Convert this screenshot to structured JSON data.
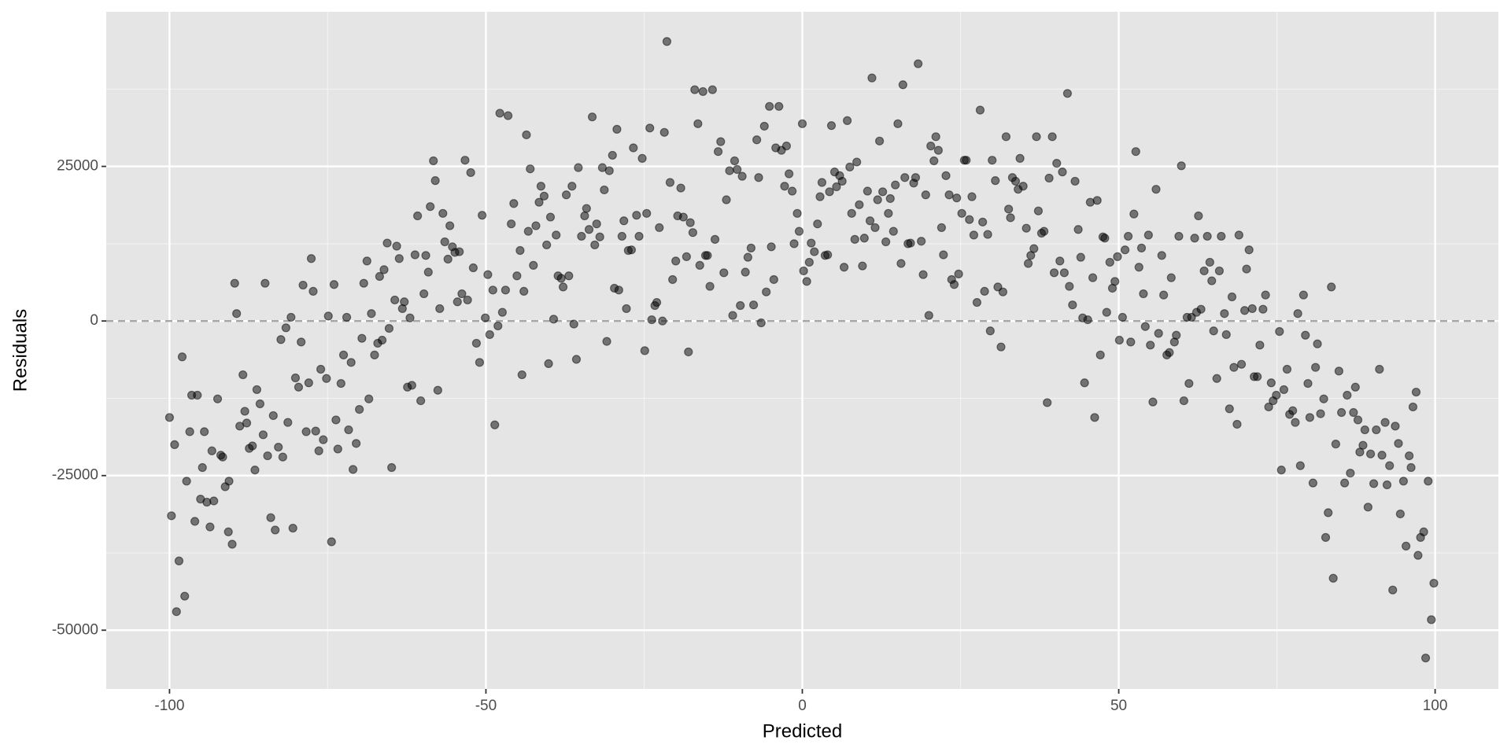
{
  "chart_data": {
    "type": "scatter",
    "x_label": "Predicted",
    "y_label": "Residuals",
    "xlim": [
      -110,
      110
    ],
    "ylim": [
      -59500,
      50000
    ],
    "xticks": [
      -100,
      -50,
      0,
      50,
      100
    ],
    "yticks": [
      -50000,
      -25000,
      0,
      25000
    ],
    "x_minor_grid": [
      -75,
      -25,
      25,
      75
    ],
    "y_minor_grid": [
      -37500,
      -12500,
      12500,
      37500
    ],
    "grid": true,
    "hline": 0,
    "color": "#000000",
    "alpha": 0.5,
    "x": [
      -100,
      -99.2,
      -99.7,
      -98.9,
      -98.5,
      -98,
      -97.6,
      -97.3,
      -96.8,
      -96.5,
      -96,
      -95.6,
      -95.1,
      -94.8,
      -94.5,
      -94.1,
      -93.6,
      -93.3,
      -93,
      -92.4,
      -91.9,
      -91.6,
      -91.2,
      -90.7,
      -90.6,
      -90.1,
      -89.7,
      -89.4,
      -88.9,
      -88.4,
      -88.1,
      -87.8,
      -87.4,
      -86.9,
      -86.5,
      -86.2,
      -85.7,
      -85.2,
      -84.9,
      -84.5,
      -84,
      -83.6,
      -83.3,
      -82.8,
      -82.4,
      -82.1,
      -81.6,
      -81.3,
      -80.8,
      -80.5,
      -80.1,
      -79.6,
      -79.2,
      -78.9,
      -78.4,
      -78,
      -77.6,
      -77.3,
      -76.9,
      -76.4,
      -76.1,
      -75.7,
      -75.2,
      -74.9,
      -74.4,
      -74,
      -73.7,
      -73.4,
      -72.9,
      -72.5,
      -72,
      -71.7,
      -71.3,
      -71,
      -70.5,
      -70,
      -69.6,
      -69.3,
      -68.8,
      -68.5,
      -68.1,
      -67.6,
      -67.1,
      -66.8,
      -66.4,
      -66.1,
      -65.6,
      -65.3,
      -64.9,
      -64.4,
      -64.1,
      -63.7,
      -63.2,
      -62.9,
      -62.4,
      -62,
      -61.7,
      -61.2,
      -60.8,
      -60.3,
      -59.8,
      -59.5,
      -59.1,
      -58.8,
      -58.3,
      -58,
      -57.6,
      -57.3,
      -56.8,
      -56.5,
      -56,
      -55.7,
      -55.3,
      -54.9,
      -54.5,
      -54.2,
      -53.8,
      -53.3,
      -52.9,
      -52.4,
      -52,
      -51.5,
      -51,
      -50.6,
      -50.1,
      -49.7,
      -49.4,
      -48.9,
      -48.6,
      -48.1,
      -47.8,
      -47.4,
      -46.9,
      -46.5,
      -46,
      -45.6,
      -45.1,
      -44.6,
      -44.3,
      -44,
      -43.6,
      -43.3,
      -43,
      -42.5,
      -42.1,
      -41.6,
      -41.3,
      -40.8,
      -40.4,
      -40.1,
      -39.8,
      -39.3,
      -38.9,
      -38.6,
      -38.1,
      -37.8,
      -37.3,
      -36.9,
      -36.4,
      -36.1,
      -35.7,
      -35.4,
      -34.9,
      -34.4,
      -34.1,
      -33.7,
      -33.2,
      -32.8,
      -32.5,
      -32,
      -31.6,
      -31.3,
      -30.9,
      -30.5,
      -30,
      -29.7,
      -29.3,
      -29,
      -28.5,
      -28.2,
      -27.8,
      -27.5,
      -27,
      -26.7,
      -26.2,
      -25.8,
      -25.3,
      -24.9,
      -24.6,
      -24.1,
      -23.8,
      -23.3,
      -23,
      -22.6,
      -22.1,
      -21.8,
      -21.4,
      -20.9,
      -20.5,
      -20,
      -19.7,
      -19.2,
      -18.8,
      -18.3,
      -18,
      -17.7,
      -17.3,
      -17,
      -16.5,
      -16.2,
      -15.7,
      -15.3,
      -15,
      -14.6,
      -14.2,
      -13.8,
      -13.3,
      -12.9,
      -12.4,
      -12,
      -11.5,
      -11,
      -10.7,
      -10.3,
      -9.8,
      -9.5,
      -9,
      -8.6,
      -8.1,
      -7.7,
      -7.2,
      -6.9,
      -6.5,
      -6,
      -5.7,
      -5.2,
      -4.9,
      -4.5,
      -4.2,
      -3.7,
      -3.3,
      -2.8,
      -2.5,
      -2.1,
      -1.6,
      -1.3,
      -0.8,
      -0.5,
      0,
      0.2,
      0.7,
      1.1,
      1.4,
      1.9,
      2.4,
      2.8,
      3.1,
      3.6,
      4,
      4.3,
      4.6,
      5.1,
      5.4,
      5.9,
      6.3,
      6.6,
      7.1,
      7.5,
      7.8,
      8.3,
      8.6,
      9,
      9.5,
      9.8,
      10.3,
      10.7,
      11,
      11.5,
      11.9,
      12.2,
      12.7,
      13.2,
      13.6,
      13.9,
      14.4,
      14.7,
      15.1,
      15.6,
      15.9,
      16.2,
      16.7,
      17.1,
      17.6,
      17.9,
      18.3,
      18.8,
      19.1,
      19.5,
      20,
      20.3,
      20.8,
      21.1,
      21.5,
      22,
      22.3,
      22.7,
      23.2,
      23.6,
      24,
      24.4,
      24.7,
      25.2,
      25.6,
      25.9,
      26.4,
      26.8,
      27.1,
      27.6,
      28.1,
      28.5,
      28.8,
      29.3,
      29.7,
      30,
      30.5,
      30.9,
      31.4,
      31.7,
      32.2,
      32.6,
      32.9,
      33.2,
      33.7,
      34.1,
      34.4,
      34.9,
      35.4,
      35.7,
      36.1,
      36.6,
      37,
      37.3,
      37.8,
      38.2,
      38.7,
      39,
      39.5,
      39.8,
      40.2,
      40.7,
      41.1,
      41.4,
      41.9,
      42.2,
      42.7,
      43.1,
      43.6,
      44,
      44.3,
      44.6,
      45.1,
      45.5,
      45.9,
      46.2,
      46.6,
      47.1,
      47.5,
      47.8,
      48.1,
      48.6,
      49,
      49.4,
      49.8,
      50.1,
      50.6,
      51,
      51.5,
      51.9,
      52.4,
      52.7,
      53.2,
      53.6,
      53.9,
      54.2,
      54.7,
      55,
      55.4,
      55.9,
      56.3,
      56.8,
      57.1,
      57.6,
      58,
      58.3,
      58.8,
      59.1,
      59.5,
      59.9,
      60.3,
      60.8,
      61.1,
      61.5,
      62,
      62.3,
      62.6,
      63,
      63.5,
      64,
      64.4,
      64.7,
      65,
      65.5,
      65.9,
      66.2,
      66.7,
      67,
      67.5,
      67.9,
      68.2,
      68.7,
      69,
      69.4,
      69.9,
      70.2,
      70.6,
      71.1,
      71.4,
      71.9,
      72.3,
      72.8,
      73.2,
      73.7,
      74.1,
      74.4,
      74.9,
      75.4,
      75.7,
      76.1,
      76.6,
      77,
      77.5,
      77.9,
      78.3,
      78.7,
      79.2,
      79.5,
      79.9,
      80.2,
      80.7,
      81.1,
      81.4,
      81.9,
      82.4,
      82.7,
      83.1,
      83.6,
      83.9,
      84.3,
      84.8,
      85.2,
      85.7,
      86.1,
      86.6,
      87.1,
      87.4,
      87.8,
      88.1,
      88.6,
      88.9,
      89.4,
      89.8,
      90.3,
      90.7,
      91.2,
      91.6,
      92.1,
      92.4,
      92.8,
      93.3,
      93.7,
      94.2,
      94.5,
      95,
      95.4,
      95.9,
      96.2,
      96.5,
      97,
      97.3,
      97.7,
      98.2,
      98.5,
      98.9,
      99.4,
      99.8
    ],
    "values": [
      -15600,
      -20000,
      -31500,
      -47000,
      -38800,
      -5800,
      -44500,
      -25900,
      -17900,
      -12000,
      -32400,
      -12000,
      -28800,
      -23700,
      -17900,
      -29300,
      -33300,
      -21000,
      -29100,
      -12600,
      -21700,
      -22000,
      -26800,
      -34100,
      -25900,
      -36100,
      6100,
      1200,
      -17000,
      -8700,
      -14600,
      -16500,
      -20600,
      -20200,
      -24100,
      -11100,
      -13400,
      -18400,
      6100,
      -21800,
      -31800,
      -15300,
      -33800,
      -20400,
      -3000,
      -22000,
      -1100,
      -16400,
      600,
      -33500,
      -9200,
      -10700,
      -3400,
      5800,
      -17900,
      -10000,
      10100,
      4800,
      -17800,
      -21000,
      -7800,
      -19200,
      -9300,
      800,
      -35700,
      5900,
      -16000,
      -20700,
      -10100,
      -5500,
      600,
      -17600,
      -6700,
      -24000,
      -19800,
      -14300,
      -2800,
      6100,
      9700,
      -12600,
      1200,
      -5500,
      -3600,
      7200,
      -3100,
      8300,
      12600,
      -1200,
      -23700,
      3400,
      12100,
      10100,
      2000,
      3100,
      -10700,
      500,
      -10400,
      10700,
      17000,
      -12900,
      4400,
      10600,
      7900,
      18500,
      25900,
      22700,
      -11200,
      2000,
      17400,
      12800,
      10000,
      15400,
      12000,
      11100,
      3100,
      11200,
      4400,
      26000,
      3400,
      24000,
      8600,
      -3600,
      -6700,
      17100,
      500,
      7500,
      -2200,
      5000,
      -16800,
      -800,
      33600,
      1400,
      5000,
      33200,
      15700,
      19000,
      7300,
      11400,
      -8700,
      4800,
      30100,
      14500,
      24600,
      9000,
      15400,
      19200,
      21800,
      20200,
      12300,
      -6900,
      16800,
      300,
      13900,
      7300,
      6900,
      5500,
      20400,
      7300,
      21800,
      -500,
      -6200,
      24800,
      13700,
      17000,
      18200,
      14800,
      33000,
      12300,
      15700,
      13600,
      24800,
      21200,
      -3300,
      24300,
      26800,
      5300,
      31000,
      5000,
      13700,
      16200,
      2000,
      11400,
      11500,
      28000,
      17100,
      13700,
      26300,
      -4800,
      17400,
      31200,
      200,
      2500,
      3000,
      15100,
      0,
      30500,
      45200,
      22400,
      6700,
      9700,
      17000,
      21500,
      16800,
      10400,
      -5000,
      15900,
      14300,
      37400,
      31900,
      9000,
      37100,
      10600,
      10600,
      5600,
      37400,
      13200,
      27400,
      29000,
      7800,
      19600,
      24300,
      900,
      25900,
      24500,
      2500,
      23400,
      7900,
      10300,
      11800,
      2600,
      29300,
      23200,
      -300,
      31500,
      4700,
      34700,
      12000,
      6700,
      28000,
      34700,
      27600,
      21800,
      28300,
      23800,
      21000,
      12500,
      17400,
      14500,
      31900,
      8100,
      6400,
      9500,
      12600,
      11200,
      15700,
      20100,
      22400,
      10600,
      10700,
      20900,
      31600,
      24100,
      21700,
      23500,
      22600,
      8700,
      32400,
      24900,
      17400,
      13200,
      25700,
      18800,
      8900,
      13400,
      21000,
      16200,
      39300,
      15100,
      19600,
      29100,
      20900,
      12800,
      17400,
      19800,
      14500,
      22000,
      31900,
      9300,
      38200,
      23200,
      12500,
      12600,
      22300,
      23200,
      41600,
      12900,
      7500,
      20400,
      900,
      28300,
      25900,
      29800,
      27600,
      15100,
      10700,
      23500,
      20400,
      6700,
      5900,
      19900,
      7600,
      17400,
      26000,
      26000,
      16400,
      20100,
      13900,
      3000,
      34100,
      16000,
      4800,
      14000,
      -1600,
      26000,
      22700,
      5500,
      -4200,
      4700,
      29800,
      18100,
      16700,
      23200,
      22600,
      21300,
      26300,
      21800,
      15000,
      9300,
      10600,
      11700,
      29800,
      17800,
      14200,
      14500,
      -13200,
      23100,
      29800,
      7800,
      25500,
      9700,
      24100,
      7800,
      36800,
      5600,
      2600,
      22600,
      14800,
      10300,
      500,
      -10000,
      200,
      19200,
      7000,
      -15600,
      19500,
      -5500,
      13600,
      13400,
      1400,
      9500,
      5300,
      6400,
      10400,
      -3100,
      600,
      11500,
      13700,
      -3400,
      17300,
      27400,
      8700,
      11800,
      4400,
      -900,
      13900,
      -3900,
      -13100,
      21300,
      -2000,
      10600,
      4200,
      -5500,
      -5100,
      7000,
      -3400,
      -2300,
      13700,
      25100,
      -12900,
      600,
      -10100,
      600,
      13400,
      1400,
      17000,
      1900,
      8100,
      13700,
      9500,
      6500,
      -1600,
      -9300,
      8100,
      13700,
      1200,
      -2200,
      -14200,
      3900,
      -7500,
      -16700,
      13900,
      -7000,
      1700,
      8400,
      11500,
      2000,
      -9000,
      -9000,
      -3900,
      1900,
      4200,
      -13900,
      -10000,
      -12900,
      -12000,
      -1700,
      -24100,
      -11100,
      -7800,
      -15100,
      -14500,
      -16400,
      1200,
      -23400,
      4200,
      -2300,
      -10100,
      -15600,
      -26200,
      -7500,
      -3700,
      -15000,
      -12600,
      -35000,
      -31000,
      5500,
      -41600,
      -19900,
      -8100,
      -14800,
      -26200,
      -12000,
      -24600,
      -14800,
      -10700,
      -16000,
      -21200,
      -20100,
      -17600,
      -30100,
      -21500,
      -26300,
      -17600,
      -7800,
      -21700,
      -16400,
      -26500,
      -23400,
      -43500,
      -17000,
      -19800,
      -31200,
      -25900,
      -36400,
      -21800,
      -23700,
      -13900,
      -11500,
      -37900,
      -35000,
      -34100,
      -54500,
      -25900,
      -48300,
      -42400
    ]
  }
}
